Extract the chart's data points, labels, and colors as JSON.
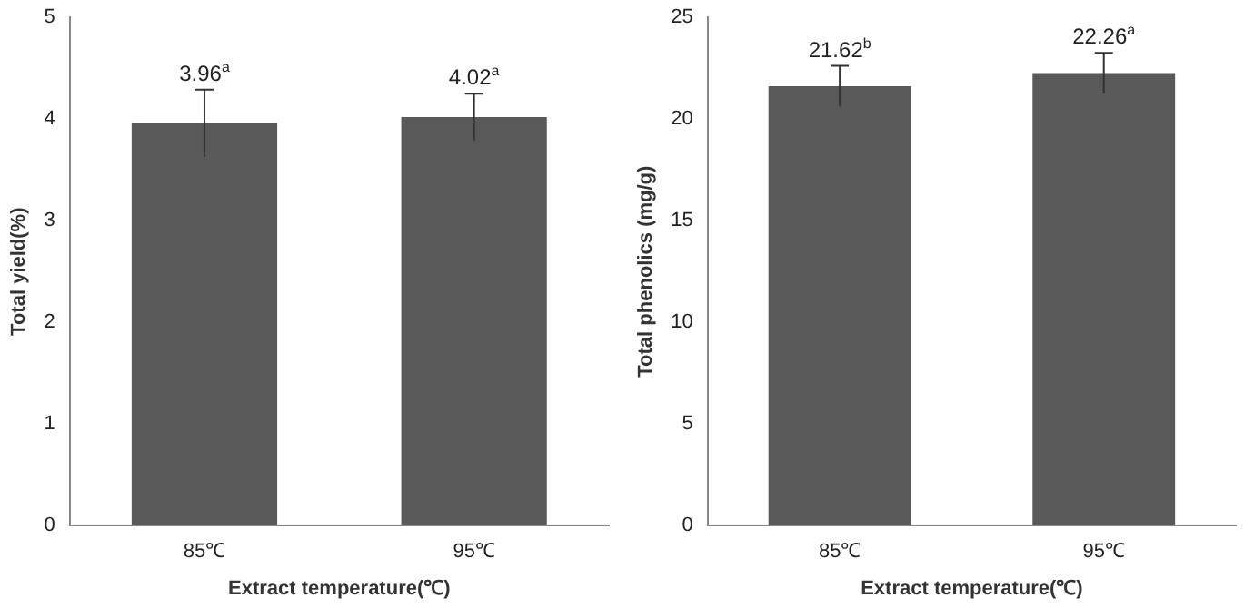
{
  "chart_data": [
    {
      "type": "bar",
      "categories": [
        "85℃",
        "95℃"
      ],
      "values": [
        3.96,
        4.02
      ],
      "color": "#595959",
      "errors": [
        0.33,
        0.23
      ],
      "value_labels": [
        "3.96$^{a}$",
        "4.02$^{a}$"
      ],
      "xlabel": "Extract temperature(℃)",
      "ylabel": "Total yield(%)",
      "ylim": [
        0,
        5
      ],
      "yticks": [
        0,
        1,
        2,
        3,
        4,
        5
      ],
      "grid": false,
      "legend": false
    },
    {
      "type": "bar",
      "categories": [
        "85℃",
        "95℃"
      ],
      "values": [
        21.62,
        22.26
      ],
      "color": "#595959",
      "errors": [
        1.0,
        1.0
      ],
      "value_labels": [
        "21.62$^{b}$",
        "22.26$^{a}$"
      ],
      "xlabel": "Extract temperature(℃)",
      "ylabel": "Total phenolics (mg/g)",
      "ylim": [
        0,
        25
      ],
      "yticks": [
        0,
        5,
        10,
        15,
        20,
        25
      ],
      "grid": false,
      "legend": false
    }
  ]
}
